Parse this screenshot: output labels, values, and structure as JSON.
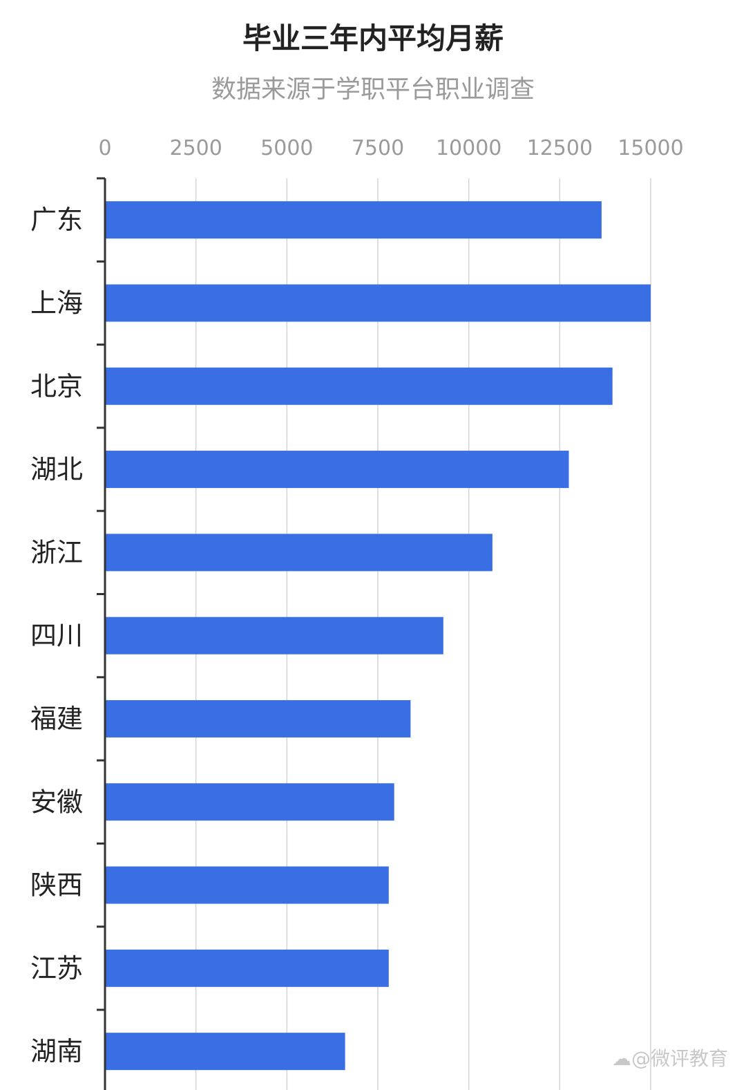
{
  "chart_data": {
    "type": "bar",
    "orientation": "horizontal",
    "title": "毕业三年内平均月薪",
    "subtitle": "数据来源于学职平台职业调查",
    "categories": [
      "广东",
      "上海",
      "北京",
      "湖北",
      "浙江",
      "四川",
      "福建",
      "安徽",
      "陕西",
      "江苏",
      "湖南"
    ],
    "values": [
      13650,
      15000,
      13950,
      12750,
      10650,
      9300,
      8400,
      7950,
      7800,
      7800,
      6600
    ],
    "xlim": [
      0,
      15000
    ],
    "ticks": [
      "0",
      "2500",
      "5000",
      "7500",
      "10000",
      "12500",
      "15000"
    ],
    "tick_position": "top",
    "grid": true,
    "bar_color": "#3a6ee3"
  },
  "watermark": "@微评教育"
}
